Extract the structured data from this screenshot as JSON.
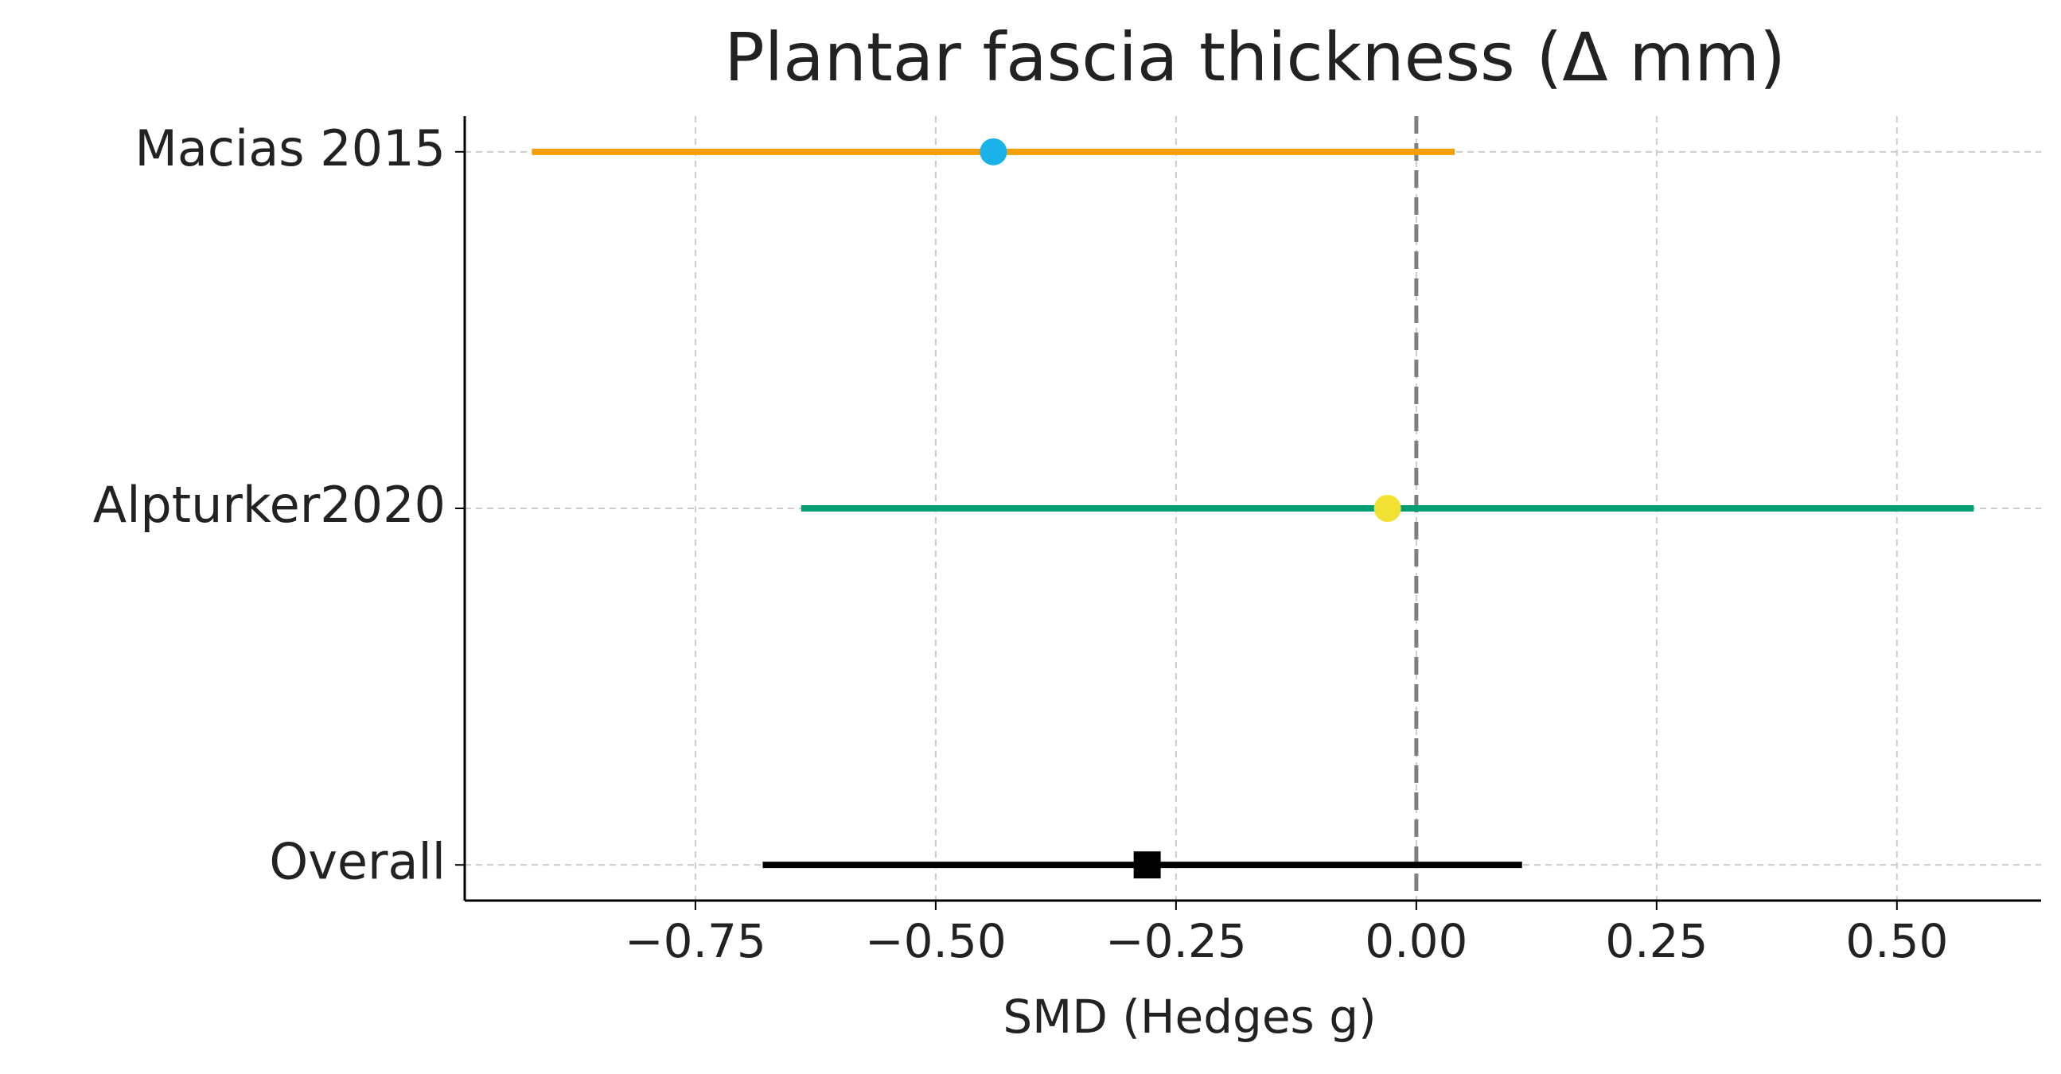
{
  "chart_data": {
    "type": "forest",
    "title": "Plantar fascia thickness (Δ mm)",
    "xlabel": "SMD (Hedges g)",
    "categories": [
      "Macias 2015",
      "Alpturker2020",
      "Overall"
    ],
    "values": [
      -0.44,
      -0.03,
      -0.28
    ],
    "lower": [
      -0.92,
      -0.64,
      -0.68
    ],
    "upper": [
      0.04,
      0.58,
      0.11
    ],
    "line_colors": [
      "#f5a000",
      "#009e73",
      "#000000"
    ],
    "marker_colors": [
      "#1ab2e8",
      "#f2e130",
      "#000000"
    ],
    "markers": [
      "circle",
      "circle",
      "square"
    ],
    "ref_line": 0,
    "xlim": [
      -0.99,
      0.65
    ],
    "xticks": [
      {
        "value": -0.75,
        "label": "−0.75"
      },
      {
        "value": -0.5,
        "label": "−0.50"
      },
      {
        "value": -0.25,
        "label": "−0.25"
      },
      {
        "value": 0,
        "label": "0.00"
      },
      {
        "value": 0.25,
        "label": "0.25"
      },
      {
        "value": 0.5,
        "label": "0.50"
      }
    ],
    "grid": true
  }
}
